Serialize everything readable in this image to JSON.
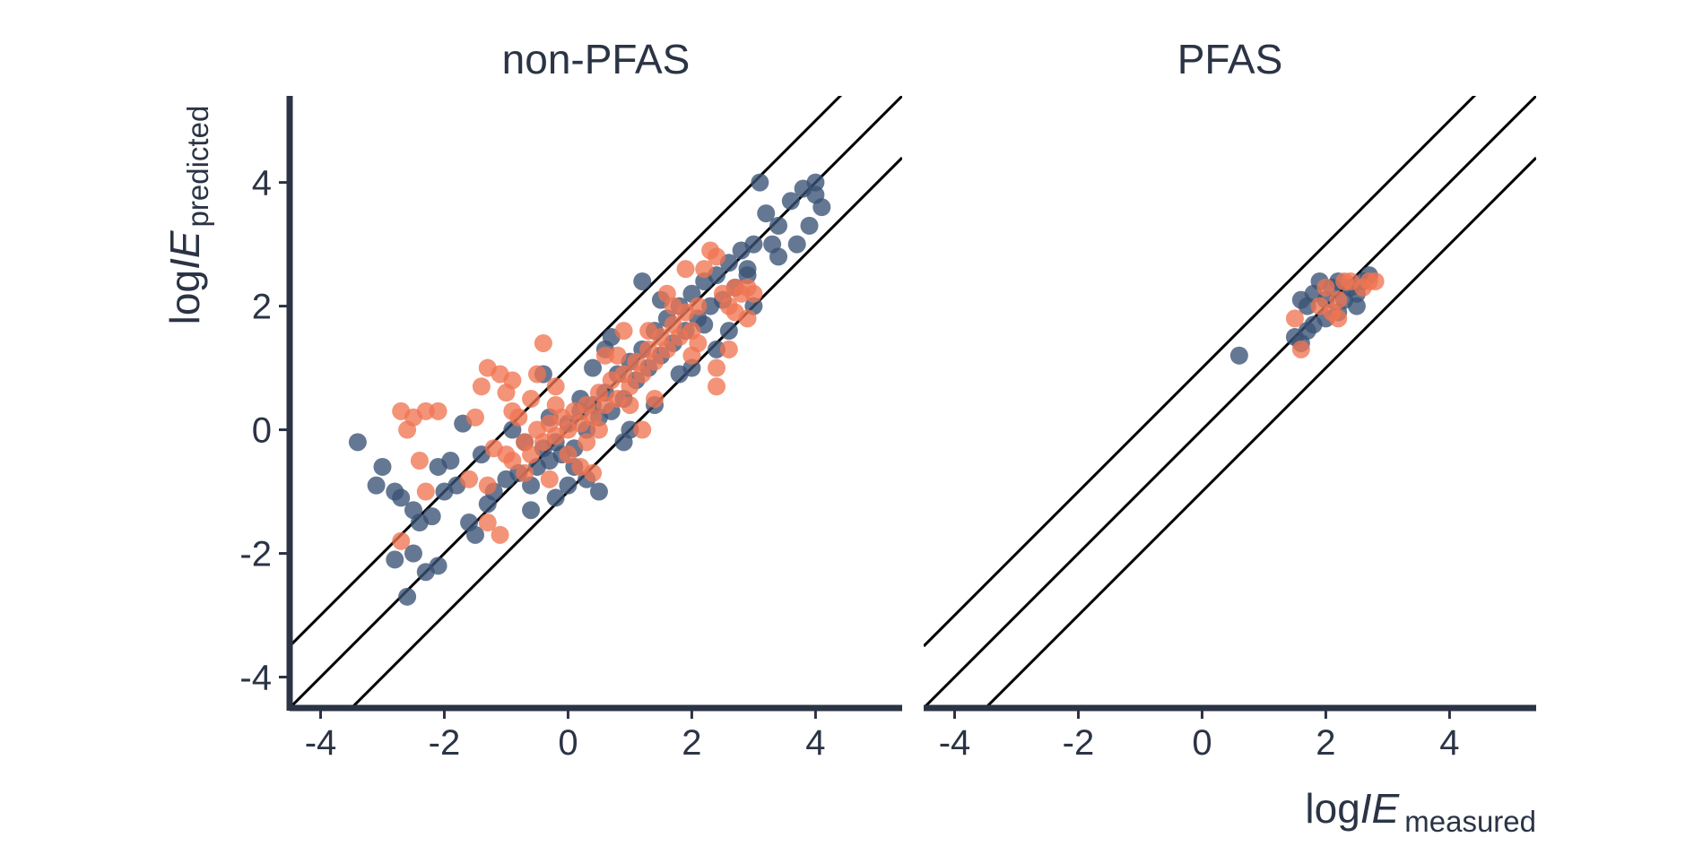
{
  "chart_data": {
    "type": "scatter",
    "panels": [
      {
        "title": "non-PFAS",
        "xlim": [
          -4.5,
          5.4
        ],
        "ylim": [
          -4.5,
          5.4
        ],
        "xticks": [
          "-4",
          "-2",
          "0",
          "2",
          "4"
        ],
        "yticks": [
          "-4",
          "-2",
          "0",
          "2",
          "4"
        ],
        "reference_lines": [
          {
            "slope": 1,
            "intercept": 1
          },
          {
            "slope": 1,
            "intercept": 0
          },
          {
            "slope": 1,
            "intercept": -1
          }
        ],
        "series": [
          {
            "color": "#3a5275",
            "points": [
              [
                -3.4,
                -0.2
              ],
              [
                -3.0,
                -0.6
              ],
              [
                -3.1,
                -0.9
              ],
              [
                -2.8,
                -1.0
              ],
              [
                -2.7,
                -1.1
              ],
              [
                -2.5,
                -1.3
              ],
              [
                -2.4,
                -1.5
              ],
              [
                -2.2,
                -1.4
              ],
              [
                -2.0,
                -1.0
              ],
              [
                -1.8,
                -0.9
              ],
              [
                -1.6,
                -1.5
              ],
              [
                -1.5,
                -1.7
              ],
              [
                -1.3,
                -1.2
              ],
              [
                -1.2,
                -1.0
              ],
              [
                -1.0,
                -0.8
              ],
              [
                -0.8,
                -0.7
              ],
              [
                -0.6,
                -0.9
              ],
              [
                -0.5,
                -0.6
              ],
              [
                -0.4,
                -0.3
              ],
              [
                -0.3,
                -0.5
              ],
              [
                -0.2,
                -0.2
              ],
              [
                -0.1,
                -0.4
              ],
              [
                0.0,
                0.1
              ],
              [
                0.1,
                -0.3
              ],
              [
                0.2,
                0.3
              ],
              [
                0.3,
                0.0
              ],
              [
                0.4,
                0.4
              ],
              [
                0.5,
                0.2
              ],
              [
                0.6,
                0.6
              ],
              [
                0.7,
                0.3
              ],
              [
                0.8,
                0.9
              ],
              [
                0.9,
                0.5
              ],
              [
                1.0,
                1.1
              ],
              [
                1.1,
                0.8
              ],
              [
                1.2,
                1.3
              ],
              [
                1.3,
                1.0
              ],
              [
                1.4,
                1.6
              ],
              [
                1.5,
                1.2
              ],
              [
                1.6,
                1.8
              ],
              [
                1.7,
                1.4
              ],
              [
                1.8,
                2.0
              ],
              [
                1.9,
                1.6
              ],
              [
                2.0,
                2.2
              ],
              [
                2.1,
                1.8
              ],
              [
                2.2,
                2.4
              ],
              [
                2.3,
                2.0
              ],
              [
                2.4,
                2.5
              ],
              [
                2.5,
                2.1
              ],
              [
                2.6,
                2.7
              ],
              [
                2.7,
                2.3
              ],
              [
                2.8,
                2.9
              ],
              [
                2.9,
                2.5
              ],
              [
                3.0,
                3.0
              ],
              [
                3.2,
                3.5
              ],
              [
                3.4,
                3.3
              ],
              [
                3.6,
                3.7
              ],
              [
                3.8,
                3.9
              ],
              [
                4.0,
                4.0
              ],
              [
                4.1,
                3.6
              ],
              [
                3.1,
                4.0
              ],
              [
                -2.8,
                -2.1
              ],
              [
                -2.5,
                -2.0
              ],
              [
                -2.3,
                -2.3
              ],
              [
                -2.1,
                -2.2
              ],
              [
                -2.6,
                -2.7
              ],
              [
                -1.9,
                -0.5
              ],
              [
                -2.1,
                -0.6
              ],
              [
                -1.4,
                -0.4
              ],
              [
                -0.9,
                0.0
              ],
              [
                -0.7,
                -0.2
              ],
              [
                -0.3,
                0.2
              ],
              [
                0.2,
                0.5
              ],
              [
                0.4,
                1.0
              ],
              [
                0.6,
                1.3
              ],
              [
                0.3,
                -0.8
              ],
              [
                0.5,
                -1.0
              ],
              [
                -0.2,
                -1.1
              ],
              [
                0.0,
                -0.9
              ],
              [
                1.2,
                2.4
              ],
              [
                1.5,
                2.1
              ],
              [
                1.0,
                0.0
              ],
              [
                1.4,
                0.4
              ],
              [
                2.0,
                1.0
              ],
              [
                2.4,
                1.3
              ],
              [
                2.6,
                1.6
              ],
              [
                3.0,
                2.0
              ],
              [
                3.4,
                2.8
              ],
              [
                3.7,
                3.0
              ],
              [
                2.9,
                2.6
              ],
              [
                -1.7,
                0.1
              ],
              [
                -0.6,
                -1.3
              ],
              [
                0.1,
                -0.6
              ],
              [
                -0.4,
                0.9
              ],
              [
                0.7,
                1.5
              ],
              [
                0.9,
                -0.2
              ],
              [
                1.8,
                0.9
              ],
              [
                2.2,
                1.7
              ],
              [
                3.3,
                3.0
              ],
              [
                3.9,
                3.3
              ],
              [
                4.0,
                3.8
              ]
            ]
          },
          {
            "color": "#ef7552",
            "points": [
              [
                -2.7,
                0.3
              ],
              [
                -2.6,
                0.0
              ],
              [
                -2.5,
                0.2
              ],
              [
                -2.3,
                0.3
              ],
              [
                -2.1,
                0.3
              ],
              [
                -2.4,
                -0.5
              ],
              [
                -2.3,
                -1.0
              ],
              [
                -2.7,
                -1.8
              ],
              [
                -1.3,
                -0.9
              ],
              [
                -1.4,
                0.7
              ],
              [
                -1.3,
                1.0
              ],
              [
                -1.1,
                0.9
              ],
              [
                -1.0,
                0.6
              ],
              [
                -0.9,
                0.8
              ],
              [
                -0.8,
                0.2
              ],
              [
                -0.6,
                0.5
              ],
              [
                -0.5,
                0.9
              ],
              [
                -0.4,
                1.4
              ],
              [
                -1.3,
                -1.5
              ],
              [
                -1.1,
                -1.7
              ],
              [
                -1.0,
                -0.4
              ],
              [
                -0.9,
                -0.5
              ],
              [
                -0.7,
                -0.2
              ],
              [
                -0.6,
                -0.4
              ],
              [
                -0.5,
                0.0
              ],
              [
                -0.4,
                -0.2
              ],
              [
                -0.3,
                0.1
              ],
              [
                -0.2,
                -0.1
              ],
              [
                -0.1,
                0.2
              ],
              [
                0.0,
                0.0
              ],
              [
                0.1,
                0.3
              ],
              [
                0.2,
                0.1
              ],
              [
                0.3,
                0.4
              ],
              [
                0.4,
                0.2
              ],
              [
                0.5,
                0.6
              ],
              [
                0.6,
                0.4
              ],
              [
                0.7,
                0.8
              ],
              [
                0.8,
                0.5
              ],
              [
                0.9,
                0.9
              ],
              [
                1.0,
                0.7
              ],
              [
                1.1,
                1.1
              ],
              [
                1.2,
                0.9
              ],
              [
                1.3,
                1.3
              ],
              [
                1.4,
                1.1
              ],
              [
                1.5,
                1.5
              ],
              [
                1.6,
                1.3
              ],
              [
                1.7,
                1.7
              ],
              [
                1.8,
                1.5
              ],
              [
                1.9,
                1.9
              ],
              [
                2.0,
                1.6
              ],
              [
                2.1,
                2.0
              ],
              [
                2.2,
                2.6
              ],
              [
                2.3,
                2.9
              ],
              [
                2.4,
                2.8
              ],
              [
                2.5,
                2.2
              ],
              [
                2.6,
                2.0
              ],
              [
                2.7,
                2.3
              ],
              [
                2.8,
                2.2
              ],
              [
                2.9,
                2.3
              ],
              [
                3.0,
                2.2
              ],
              [
                0.2,
                -0.6
              ],
              [
                0.4,
                -0.7
              ],
              [
                -0.3,
                -0.8
              ],
              [
                1.2,
                0.0
              ],
              [
                1.4,
                0.5
              ],
              [
                2.0,
                1.2
              ],
              [
                2.4,
                1.0
              ],
              [
                2.6,
                1.3
              ],
              [
                2.4,
                0.7
              ],
              [
                1.9,
                2.6
              ],
              [
                1.6,
                2.2
              ],
              [
                0.9,
                1.6
              ],
              [
                0.6,
                1.2
              ],
              [
                -0.2,
                0.7
              ],
              [
                -1.5,
                0.2
              ],
              [
                -1.6,
                -0.8
              ],
              [
                -1.2,
                -0.3
              ],
              [
                0.0,
                -0.4
              ],
              [
                0.5,
                0.0
              ],
              [
                1.0,
                0.4
              ],
              [
                1.3,
                1.6
              ],
              [
                1.7,
                2.0
              ],
              [
                2.1,
                1.4
              ],
              [
                2.7,
                1.9
              ],
              [
                2.9,
                1.8
              ],
              [
                -0.9,
                0.3
              ],
              [
                -0.7,
                -0.7
              ],
              [
                -0.2,
                0.4
              ],
              [
                0.3,
                -0.2
              ],
              [
                0.8,
                1.2
              ]
            ]
          }
        ]
      },
      {
        "title": "PFAS",
        "xlim": [
          -4.5,
          5.4
        ],
        "ylim": [
          -4.5,
          5.4
        ],
        "xticks": [
          "-4",
          "-2",
          "0",
          "2",
          "4"
        ],
        "reference_lines": [
          {
            "slope": 1,
            "intercept": 1
          },
          {
            "slope": 1,
            "intercept": 0
          },
          {
            "slope": 1,
            "intercept": -1
          }
        ],
        "series": [
          {
            "color": "#3a5275",
            "points": [
              [
                0.6,
                1.2
              ],
              [
                1.5,
                1.5
              ],
              [
                1.6,
                1.4
              ],
              [
                1.7,
                2.0
              ],
              [
                1.8,
                2.2
              ],
              [
                1.8,
                1.7
              ],
              [
                1.9,
                2.4
              ],
              [
                2.0,
                2.1
              ],
              [
                2.0,
                1.8
              ],
              [
                2.1,
                2.3
              ],
              [
                2.2,
                2.4
              ],
              [
                2.2,
                1.9
              ],
              [
                2.3,
                2.1
              ],
              [
                2.4,
                2.3
              ],
              [
                2.5,
                2.2
              ],
              [
                2.5,
                2.0
              ],
              [
                2.6,
                2.4
              ],
              [
                2.7,
                2.5
              ],
              [
                1.6,
                2.1
              ],
              [
                1.7,
                1.6
              ]
            ]
          },
          {
            "color": "#ef7552",
            "points": [
              [
                1.5,
                1.8
              ],
              [
                1.6,
                1.3
              ],
              [
                1.9,
                2.0
              ],
              [
                2.1,
                1.9
              ],
              [
                2.2,
                1.8
              ],
              [
                2.3,
                2.4
              ],
              [
                2.4,
                2.4
              ],
              [
                2.6,
                2.3
              ],
              [
                2.7,
                2.4
              ],
              [
                2.8,
                2.4
              ],
              [
                2.0,
                2.3
              ],
              [
                2.2,
                2.1
              ]
            ]
          }
        ]
      }
    ],
    "shared_ylabel": {
      "main": "log",
      "italic": "IE",
      "sub": "predicted"
    },
    "shared_xlabel": {
      "main": "log",
      "italic": "IE",
      "sub": "measured"
    },
    "grid": false,
    "legend": "none"
  }
}
